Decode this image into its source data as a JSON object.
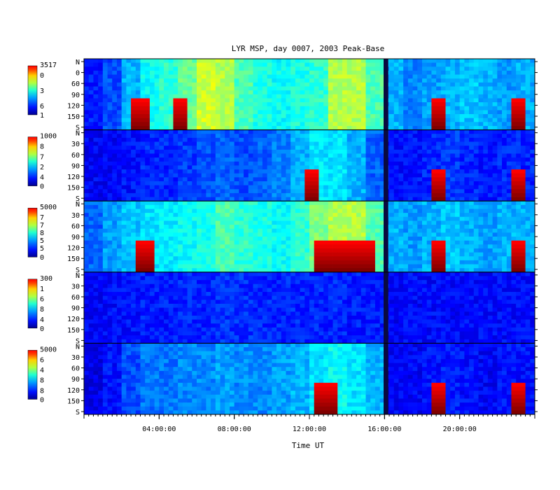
{
  "chart_data": {
    "type": "heatmap",
    "title": "LYR MSP, day 0007, 2003 Peak-Base",
    "xlabel": "Time UT",
    "x_range_hours": [
      0,
      24
    ],
    "x_ticks": [
      {
        "hour": 4,
        "label": "04:00:00"
      },
      {
        "hour": 8,
        "label": "08:00:00"
      },
      {
        "hour": 12,
        "label": "12:00:00"
      },
      {
        "hour": 16,
        "label": "16:00:00"
      },
      {
        "hour": 20,
        "label": "20:00:00"
      }
    ],
    "data_gap_hours": [
      15.95,
      16.2
    ],
    "panels": [
      {
        "y_ticks": [
          "N",
          "0",
          "60",
          "90",
          "120",
          "150",
          "S"
        ],
        "colorbar_max": "3517",
        "colorbar_mid_labels": [
          "0",
          "3",
          "6"
        ],
        "colorbar_min": "1",
        "intensity": [
          0.15,
          0.2,
          0.3,
          0.38,
          0.42,
          0.48,
          0.58,
          0.55,
          0.45,
          0.4,
          0.38,
          0.4,
          0.42,
          0.55,
          0.55,
          0.45,
          0.3,
          0.25,
          0.28,
          0.3,
          0.32,
          0.3,
          0.28,
          0.3
        ],
        "aurora_hours": [
          2.5,
          3.5,
          4.8,
          5.5,
          18.5,
          19.3,
          22.8,
          23.6
        ]
      },
      {
        "y_ticks": [
          "N",
          "30",
          "60",
          "90",
          "120",
          "150",
          "S"
        ],
        "colorbar_max": "1000",
        "colorbar_mid_labels": [
          "8",
          "7",
          "2",
          "4"
        ],
        "colorbar_min": "0",
        "intensity": [
          0.12,
          0.12,
          0.14,
          0.16,
          0.16,
          0.18,
          0.2,
          0.22,
          0.2,
          0.22,
          0.25,
          0.3,
          0.35,
          0.35,
          0.3,
          0.22,
          0.14,
          0.14,
          0.16,
          0.18,
          0.16,
          0.15,
          0.16,
          0.16
        ],
        "aurora_hours": [
          11.8,
          12.5,
          18.5,
          19.3,
          22.8,
          23.6
        ]
      },
      {
        "y_ticks": [
          "N",
          "30",
          "60",
          "90",
          "120",
          "150",
          "S"
        ],
        "colorbar_max": "5000",
        "colorbar_mid_labels": [
          "7",
          "7",
          "8",
          "5",
          "5"
        ],
        "colorbar_min": "0",
        "intensity": [
          0.22,
          0.28,
          0.32,
          0.35,
          0.36,
          0.38,
          0.4,
          0.45,
          0.42,
          0.4,
          0.38,
          0.42,
          0.5,
          0.55,
          0.55,
          0.45,
          0.3,
          0.28,
          0.3,
          0.32,
          0.3,
          0.28,
          0.3,
          0.3
        ],
        "aurora_hours": [
          2.8,
          3.8,
          12.2,
          15.5,
          18.5,
          19.3,
          22.8,
          23.6
        ]
      },
      {
        "y_ticks": [
          "N",
          "30",
          "60",
          "90",
          "120",
          "150",
          "S"
        ],
        "colorbar_max": "300",
        "colorbar_mid_labels": [
          "1",
          "6",
          "8",
          "4"
        ],
        "colorbar_min": "0",
        "intensity": [
          0.12,
          0.13,
          0.14,
          0.15,
          0.15,
          0.16,
          0.16,
          0.17,
          0.17,
          0.16,
          0.16,
          0.16,
          0.16,
          0.16,
          0.15,
          0.15,
          0.12,
          0.13,
          0.13,
          0.13,
          0.13,
          0.13,
          0.13,
          0.13
        ],
        "aurora_hours": []
      },
      {
        "y_ticks": [
          "N",
          "30",
          "60",
          "90",
          "120",
          "150",
          "S"
        ],
        "colorbar_max": "5000",
        "colorbar_mid_labels": [
          "6",
          "4",
          "8",
          "8"
        ],
        "colorbar_min": "0",
        "intensity": [
          0.1,
          0.14,
          0.2,
          0.24,
          0.24,
          0.26,
          0.26,
          0.28,
          0.26,
          0.26,
          0.28,
          0.3,
          0.35,
          0.38,
          0.35,
          0.3,
          0.12,
          0.12,
          0.14,
          0.15,
          0.14,
          0.12,
          0.14,
          0.14
        ],
        "aurora_hours": [
          12.2,
          13.5,
          18.5,
          19.3,
          22.8,
          23.6
        ]
      }
    ]
  }
}
